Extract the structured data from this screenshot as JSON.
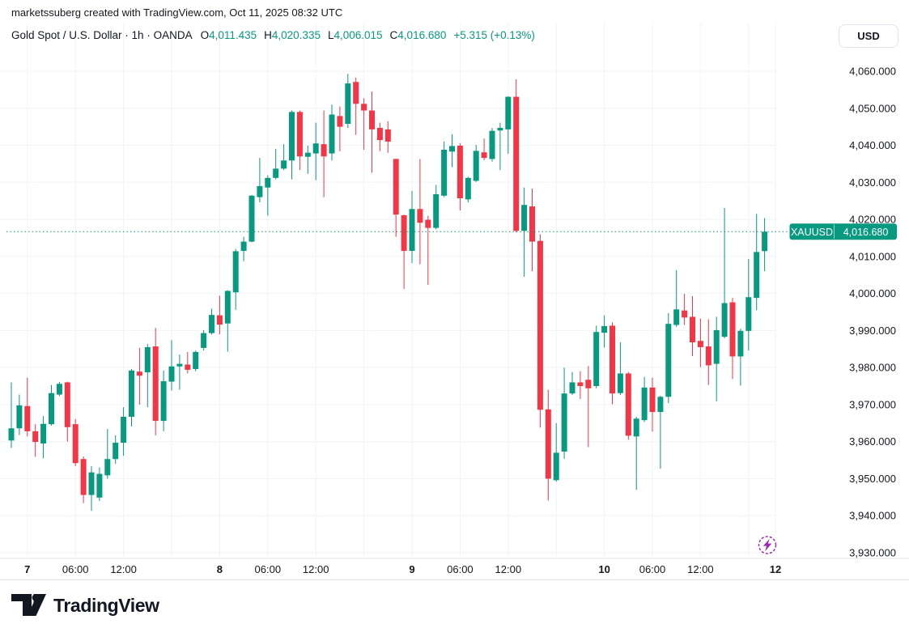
{
  "attribution": "marketssuberg created with TradingView.com, Oct 11, 2025 08:32 UTC",
  "header": {
    "symbol_title": "Gold Spot / U.S. Dollar · 1h · OANDA",
    "ohlc": {
      "o_label": "O",
      "o_value": "4,011.435",
      "h_label": "H",
      "h_value": "4,020.335",
      "l_label": "L",
      "l_value": "4,006.015",
      "c_label": "C",
      "c_value": "4,016.680"
    },
    "change": "+5.315 (+0.13%)",
    "currency_button": "USD"
  },
  "price_label": {
    "symbol": "XAUUSD",
    "price": "4,016.680"
  },
  "footer": {
    "logo_text": "TradingView"
  },
  "colors": {
    "up": "#089981",
    "down": "#f23645",
    "accent_purple": "#9c27b0",
    "grid": "#f0f3fa",
    "text": "#131722",
    "axis_border": "#e0e3eb",
    "label_text": "#ffffff"
  },
  "chart_data": {
    "type": "candlestick",
    "title": "Gold Spot / U.S. Dollar",
    "interval": "1h",
    "exchange": "OANDA",
    "currency": "USD",
    "price_line_value": 4016.68,
    "ylim": [
      3926,
      4063
    ],
    "grid": true,
    "y_ticks": [
      {
        "value": 4060,
        "label": "4,060.000"
      },
      {
        "value": 4050,
        "label": "4,050.000"
      },
      {
        "value": 4040,
        "label": "4,040.000"
      },
      {
        "value": 4030,
        "label": "4,030.000"
      },
      {
        "value": 4020,
        "label": "4,020.000"
      },
      {
        "value": 4010,
        "label": "4,010.000"
      },
      {
        "value": 4000,
        "label": "4,000.000"
      },
      {
        "value": 3990,
        "label": "3,990.000"
      },
      {
        "value": 3980,
        "label": "3,980.000"
      },
      {
        "value": 3970,
        "label": "3,970.000"
      },
      {
        "value": 3960,
        "label": "3,960.000"
      },
      {
        "value": 3950,
        "label": "3,950.000"
      },
      {
        "value": 3940,
        "label": "3,940.000"
      },
      {
        "value": 3930,
        "label": "3,930.000"
      }
    ],
    "x_ticks": [
      {
        "index": 2,
        "label": "7",
        "bold": true
      },
      {
        "index": 8,
        "label": "06:00",
        "bold": false
      },
      {
        "index": 14,
        "label": "12:00",
        "bold": false
      },
      {
        "index": 26,
        "label": "8",
        "bold": true
      },
      {
        "index": 32,
        "label": "06:00",
        "bold": false
      },
      {
        "index": 38,
        "label": "12:00",
        "bold": false
      },
      {
        "index": 50,
        "label": "9",
        "bold": true
      },
      {
        "index": 56,
        "label": "06:00",
        "bold": false
      },
      {
        "index": 62,
        "label": "12:00",
        "bold": false
      },
      {
        "index": 74,
        "label": "10",
        "bold": true
      },
      {
        "index": 80,
        "label": "06:00",
        "bold": false
      },
      {
        "index": 86,
        "label": "12:00",
        "bold": false
      },
      {
        "index": 95.35,
        "label": "12",
        "bold": true
      }
    ],
    "gridline_indices": [
      2,
      8,
      14,
      20,
      26,
      32,
      38,
      44,
      50,
      56,
      62,
      68,
      74,
      80,
      86,
      92,
      95.35
    ],
    "candles": [
      [
        3960.3,
        3976.0,
        3958.3,
        3963.6
      ],
      [
        3963.6,
        3972.7,
        3961.8,
        3969.8
      ],
      [
        3969.6,
        3977.3,
        3961.4,
        3962.8
      ],
      [
        3962.8,
        3964.7,
        3955.9,
        3959.9
      ],
      [
        3959.5,
        3966.9,
        3955.5,
        3964.8
      ],
      [
        3964.7,
        3975.3,
        3964.3,
        3973.1
      ],
      [
        3972.7,
        3976.1,
        3972.3,
        3975.6
      ],
      [
        3976.0,
        3976.2,
        3960.0,
        3963.9
      ],
      [
        3964.7,
        3966.1,
        3953.4,
        3954.2
      ],
      [
        3955.3,
        3956.0,
        3943.4,
        3945.6
      ],
      [
        3945.6,
        3953.4,
        3941.3,
        3951.7
      ],
      [
        3944.9,
        3953.0,
        3944.0,
        3951.3
      ],
      [
        3950.9,
        3963.4,
        3950.0,
        3955.3
      ],
      [
        3955.3,
        3961.7,
        3954.0,
        3959.7
      ],
      [
        3959.7,
        3969.3,
        3956.2,
        3966.7
      ],
      [
        3966.7,
        3979.6,
        3964.1,
        3979.2
      ],
      [
        3978.9,
        3985.3,
        3970.0,
        3977.8
      ],
      [
        3978.7,
        3986.4,
        3969.3,
        3985.5
      ],
      [
        3985.7,
        3990.7,
        3961.7,
        3965.6
      ],
      [
        3965.6,
        3979.2,
        3962.8,
        3976.3
      ],
      [
        3976.2,
        3987.4,
        3973.8,
        3980.3
      ],
      [
        3980.3,
        3983.5,
        3974.0,
        3981.0
      ],
      [
        3980.8,
        3984.2,
        3978.4,
        3979.4
      ],
      [
        3979.6,
        3984.6,
        3979.0,
        3984.2
      ],
      [
        3985.3,
        3990.1,
        3984.6,
        3989.3
      ],
      [
        3989.3,
        3995.9,
        3988.9,
        3994.2
      ],
      [
        3994.1,
        3999.4,
        3989.0,
        3991.6
      ],
      [
        3991.9,
        4000.9,
        3984.3,
        4000.7
      ],
      [
        4000.3,
        4012.0,
        3995.6,
        4011.4
      ],
      [
        4011.5,
        4015.3,
        4008.7,
        4014.0
      ],
      [
        4014.0,
        4026.6,
        4013.8,
        4026.4
      ],
      [
        4026.0,
        4036.6,
        4024.6,
        4029.0
      ],
      [
        4028.6,
        4031.9,
        4021.0,
        4031.2
      ],
      [
        4031.2,
        4039.0,
        4030.8,
        4033.7
      ],
      [
        4033.7,
        4040.3,
        4033.3,
        4035.9
      ],
      [
        4035.9,
        4049.4,
        4030.8,
        4049.0
      ],
      [
        4049.0,
        4049.4,
        4033.3,
        4037.0
      ],
      [
        4036.9,
        4039.9,
        4032.3,
        4038.0
      ],
      [
        4037.8,
        4046.1,
        4030.6,
        4040.5
      ],
      [
        4040.3,
        4049.4,
        4026.0,
        4037.0
      ],
      [
        4037.8,
        4051.0,
        4035.9,
        4048.3
      ],
      [
        4047.9,
        4050.5,
        4038.4,
        4045.0
      ],
      [
        4045.8,
        4059.3,
        4044.7,
        4056.7
      ],
      [
        4057.1,
        4058.3,
        4042.8,
        4051.2
      ],
      [
        4051.2,
        4052.7,
        4038.8,
        4049.4
      ],
      [
        4049.4,
        4054.5,
        4032.6,
        4044.3
      ],
      [
        4044.7,
        4046.1,
        4038.4,
        4041.4
      ],
      [
        4044.3,
        4046.5,
        4038.0,
        4041.0
      ],
      [
        4036.3,
        4036.4,
        4015.3,
        4021.3
      ],
      [
        4021.1,
        4021.3,
        4001.2,
        4011.5
      ],
      [
        4011.5,
        4027.7,
        4008.2,
        4022.8
      ],
      [
        4022.8,
        4036.3,
        4007.9,
        4019.1
      ],
      [
        4019.9,
        4021.0,
        4002.3,
        4017.7
      ],
      [
        4017.7,
        4029.3,
        4017.3,
        4026.8
      ],
      [
        4026.4,
        4041.0,
        4026.0,
        4038.8
      ],
      [
        4038.3,
        4043.0,
        4034.1,
        4039.8
      ],
      [
        4039.9,
        4040.5,
        4022.4,
        4025.7
      ],
      [
        4025.4,
        4031.5,
        4024.6,
        4031.2
      ],
      [
        4030.4,
        4040.1,
        4030.1,
        4038.5
      ],
      [
        4038.1,
        4041.8,
        4036.0,
        4036.6
      ],
      [
        4036.3,
        4044.7,
        4035.6,
        4043.9
      ],
      [
        4044.0,
        4046.1,
        4033.3,
        4044.7
      ],
      [
        4044.3,
        4053.2,
        4037.7,
        4053.1
      ],
      [
        4053.1,
        4057.8,
        4016.5,
        4016.9
      ],
      [
        4016.9,
        4028.6,
        4004.5,
        4023.9
      ],
      [
        4023.5,
        4028.3,
        4006.0,
        4014.0
      ],
      [
        4014.2,
        4016.0,
        3963.8,
        3968.6
      ],
      [
        3968.7,
        3974.0,
        3944.1,
        3950.0
      ],
      [
        3949.6,
        3965.0,
        3949.2,
        3957.0
      ],
      [
        3957.3,
        3980.0,
        3955.4,
        3973.0
      ],
      [
        3973.0,
        3978.8,
        3972.6,
        3976.0
      ],
      [
        3976.0,
        3979.0,
        3971.5,
        3975.0
      ],
      [
        3976.7,
        3980.4,
        3958.5,
        3974.4
      ],
      [
        3975.0,
        3991.3,
        3974.4,
        3989.6
      ],
      [
        3989.4,
        3994.1,
        3985.4,
        3991.2
      ],
      [
        3991.3,
        3992.2,
        3970.1,
        3973.0
      ],
      [
        3973.1,
        3986.8,
        3972.6,
        3978.4
      ],
      [
        3978.4,
        3978.8,
        3960.5,
        3961.6
      ],
      [
        3961.4,
        3966.7,
        3947.0,
        3966.2
      ],
      [
        3965.8,
        3977.5,
        3965.3,
        3974.6
      ],
      [
        3974.6,
        3977.3,
        3962.7,
        3968.0
      ],
      [
        3968.0,
        3972.4,
        3952.7,
        3972.1
      ],
      [
        3972.1,
        3994.7,
        3970.4,
        3991.8
      ],
      [
        3991.5,
        4006.3,
        3991.0,
        3995.7
      ],
      [
        3995.4,
        3999.9,
        3991.5,
        3993.5
      ],
      [
        3993.7,
        3999.3,
        3983.1,
        3986.8
      ],
      [
        3987.2,
        3993.2,
        3980.1,
        3985.5
      ],
      [
        3985.7,
        3993.0,
        3975.3,
        3980.6
      ],
      [
        3981.0,
        3993.7,
        3970.9,
        3990.1
      ],
      [
        3988.3,
        4023.1,
        3987.9,
        3997.4
      ],
      [
        3997.6,
        3998.8,
        3976.9,
        3983.0
      ],
      [
        3983.0,
        3990.5,
        3975.1,
        3989.9
      ],
      [
        3989.9,
        4009.3,
        3984.6,
        3999.0
      ],
      [
        3998.8,
        4021.5,
        3995.5,
        4011.2
      ],
      [
        4011.435,
        4020.335,
        4006.015,
        4016.68
      ]
    ]
  }
}
